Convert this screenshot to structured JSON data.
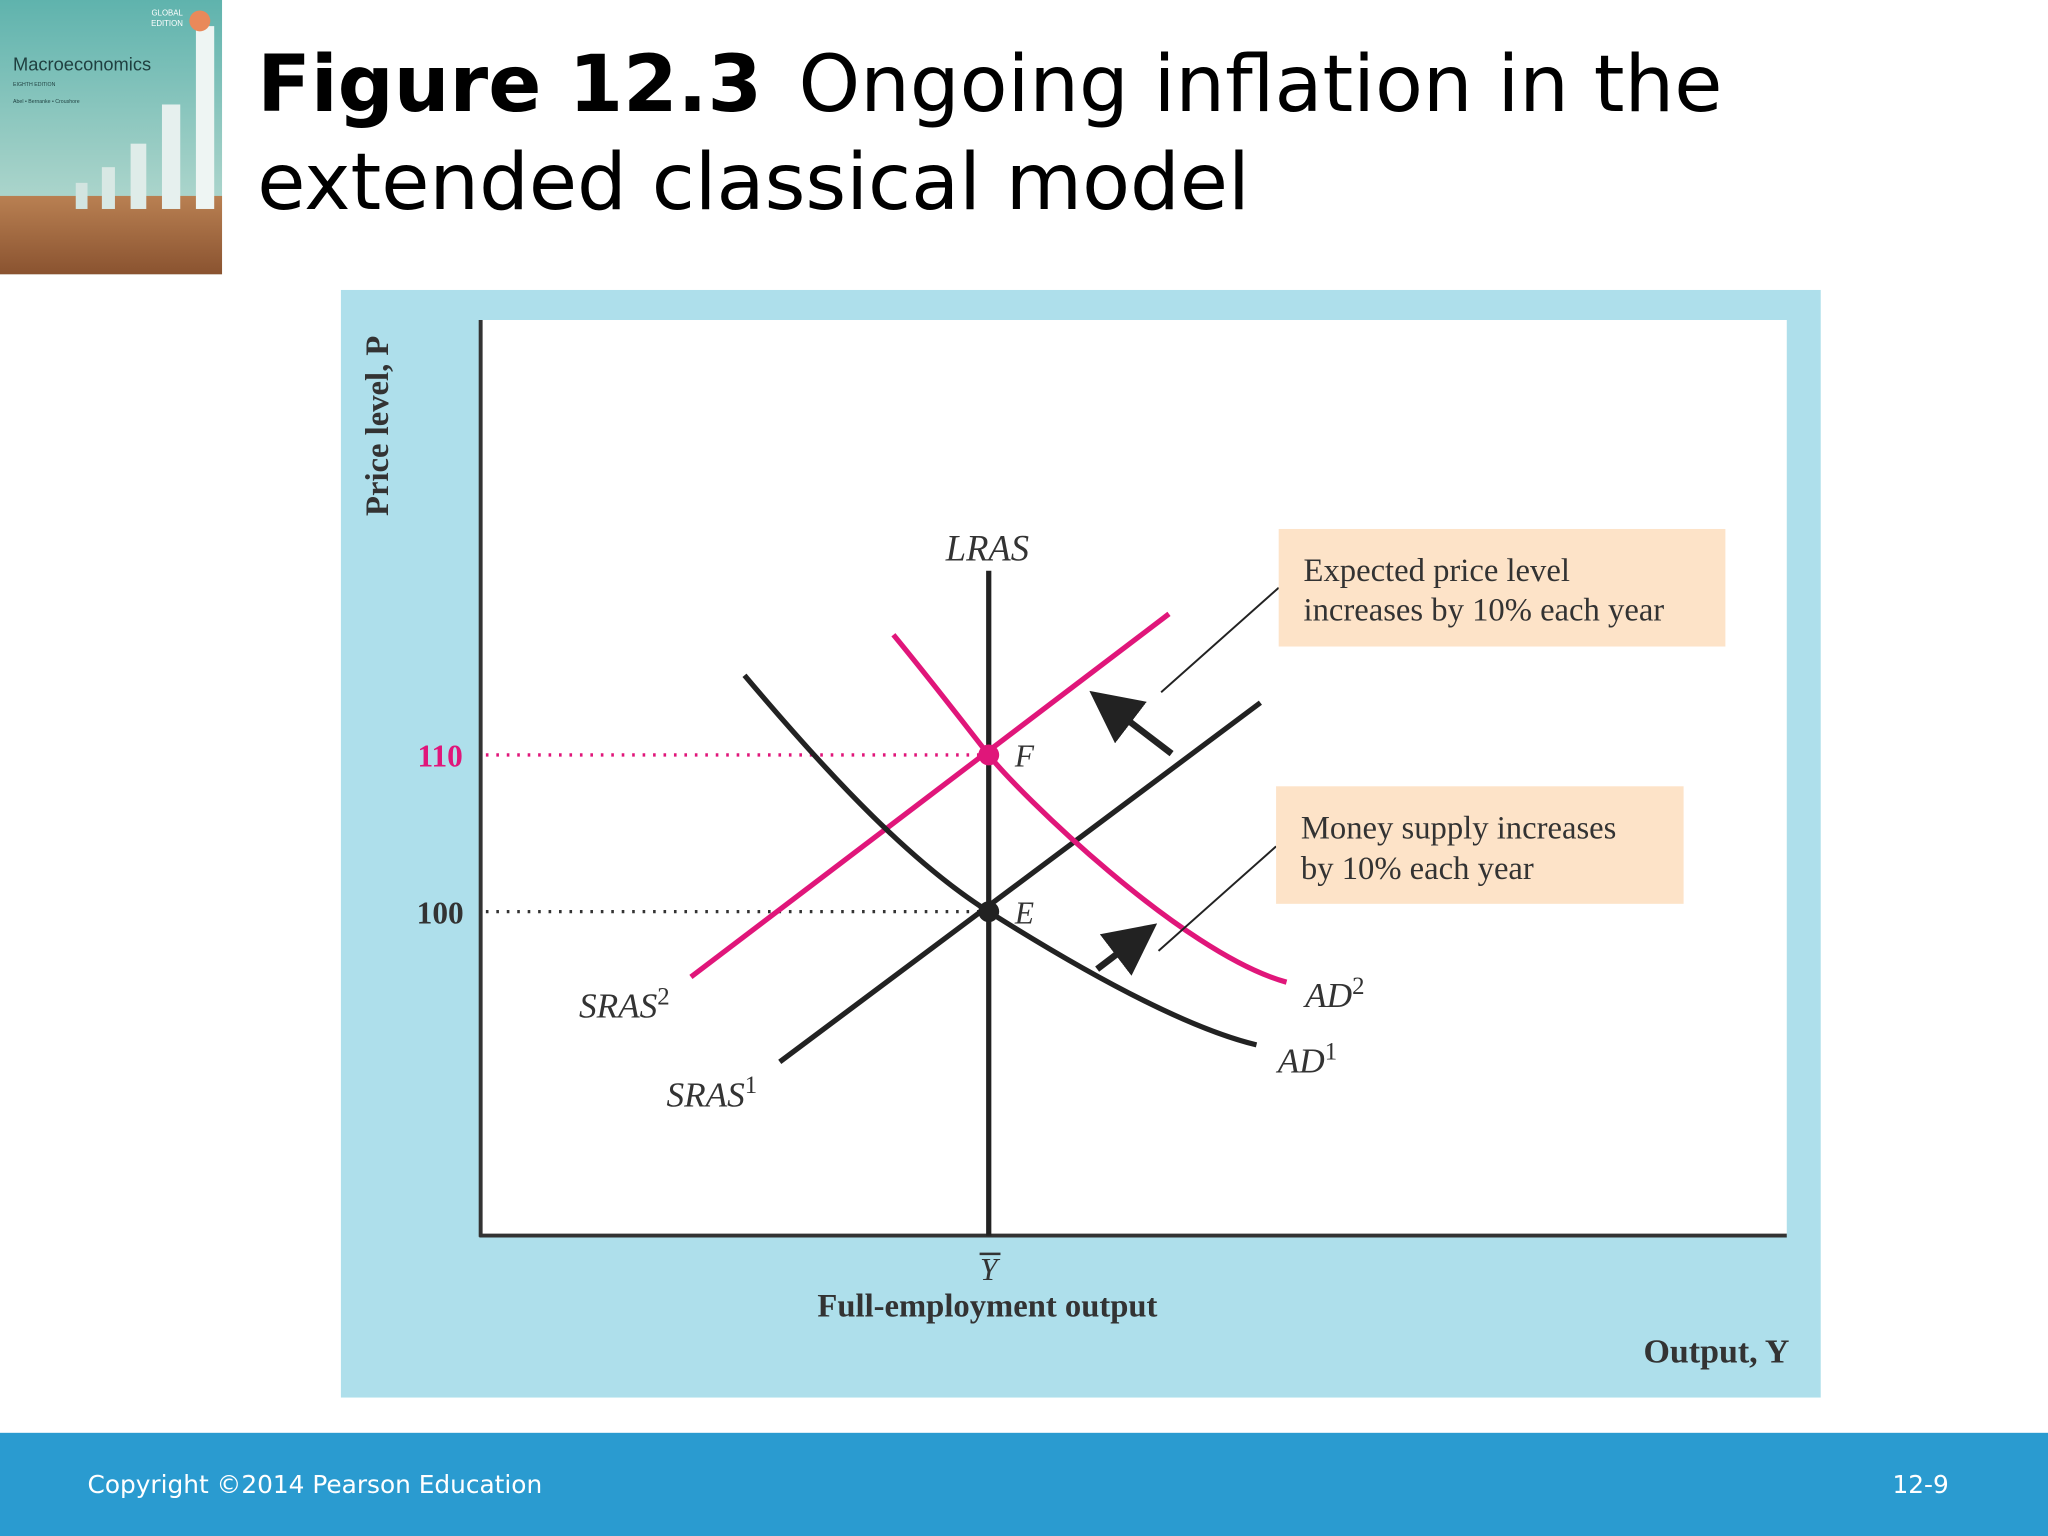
{
  "book": {
    "badge": [
      "GLOBAL",
      "EDITION"
    ],
    "title": "Macroeconomics",
    "edition": "EIGHTH EDITION",
    "authors": "Abel • Bernanke • Croushore"
  },
  "header": {
    "figure": "Figure 12.3",
    "title_lines": [
      "Ongoing inflation in the",
      "extended classical model"
    ]
  },
  "diagram": {
    "y_axis_label": "Price level, P",
    "x_axis_label": "Output, Y",
    "full_employment_symbol": "Y",
    "full_employment_label": "Full-employment output",
    "price_levels": [
      "110",
      "100"
    ],
    "lras": "LRAS",
    "points": [
      "F",
      "E"
    ],
    "sras2": {
      "name": "SRAS",
      "sup": "2"
    },
    "sras1": {
      "name": "SRAS",
      "sup": "1"
    },
    "ad2": {
      "name": "AD",
      "sup": "2"
    },
    "ad1": {
      "name": "AD",
      "sup": "1"
    },
    "notes": [
      [
        "Expected price level",
        "increases by 10% each year"
      ],
      [
        "Money supply increases",
        "by 10% each year"
      ]
    ]
  },
  "footer": {
    "copyright": "Copyright ©2014 Pearson Education",
    "page": "12-9"
  }
}
